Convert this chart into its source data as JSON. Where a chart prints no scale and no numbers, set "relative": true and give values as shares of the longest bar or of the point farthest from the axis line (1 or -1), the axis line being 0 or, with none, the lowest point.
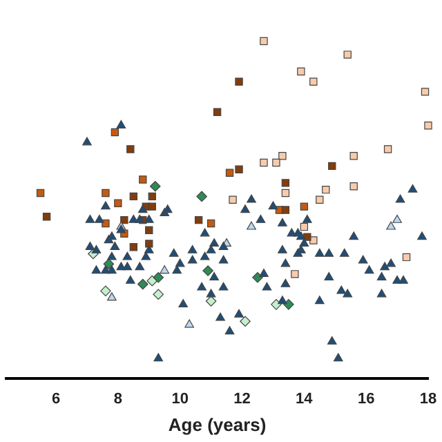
{
  "chart_data": {
    "type": "scatter",
    "xlabel": "Age (years)",
    "xlim": [
      4.4,
      18
    ],
    "xticks": [
      6,
      8,
      10,
      12,
      14,
      16,
      18
    ],
    "relative": true,
    "grid": false,
    "legend": false,
    "tick_labels": "x",
    "series": [
      {
        "marker": "triangle",
        "color": "#1f4e79",
        "x": [
          7.0,
          8.1,
          7.1,
          7.4,
          7.6,
          8.5,
          8.8,
          7.1,
          7.3,
          7.9,
          7.7,
          7.8,
          8.1,
          8.7,
          9.0,
          9.5,
          9.6,
          7.3,
          7.6,
          8.1,
          8.3,
          8.9,
          8.3,
          8.7,
          9.0,
          7.8,
          7.8,
          8.4,
          9.9,
          10.0,
          9.8,
          10.4,
          10.4,
          10.8,
          11.0,
          10.8,
          11.1,
          11.4,
          11.1,
          10.1,
          10.7,
          11.0,
          11.4,
          11.4,
          9.3,
          11.3,
          11.6,
          12.1,
          12.6,
          13.0,
          13.3,
          13.3,
          13.8,
          14.1,
          13.6,
          13.8,
          13.9,
          13.9,
          14.0,
          14.5,
          14.8,
          15.3,
          15.6,
          16.1,
          15.9,
          16.5,
          16.5,
          15.4,
          15.2,
          14.8,
          14.5,
          13.4,
          12.8,
          13.4,
          12.7,
          13.3,
          11.9,
          14.9,
          15.1,
          12.3,
          17.1,
          17.5,
          17.8,
          16.6,
          16.8,
          17.0,
          17.2
        ],
        "values": [
          0.7,
          0.75,
          0.47,
          0.47,
          0.51,
          0.47,
          0.5,
          0.39,
          0.38,
          0.39,
          0.41,
          0.42,
          0.44,
          0.47,
          0.47,
          0.49,
          0.5,
          0.32,
          0.32,
          0.33,
          0.36,
          0.36,
          0.33,
          0.33,
          0.38,
          0.36,
          0.32,
          0.29,
          0.32,
          0.34,
          0.37,
          0.38,
          0.35,
          0.36,
          0.38,
          0.43,
          0.4,
          0.39,
          0.3,
          0.22,
          0.27,
          0.25,
          0.35,
          0.27,
          0.06,
          0.18,
          0.14,
          0.5,
          0.47,
          0.51,
          0.46,
          0.38,
          0.43,
          0.47,
          0.43,
          0.37,
          0.42,
          0.38,
          0.4,
          0.37,
          0.37,
          0.37,
          0.42,
          0.32,
          0.35,
          0.25,
          0.3,
          0.25,
          0.26,
          0.3,
          0.23,
          0.28,
          0.27,
          0.34,
          0.31,
          0.23,
          0.19,
          0.11,
          0.06,
          0.53,
          0.53,
          0.56,
          0.42,
          0.33,
          0.34,
          0.29,
          0.29
        ]
      },
      {
        "marker": "triangle",
        "color": "#bdd7ee",
        "x": [
          8.1,
          9.5,
          10.3,
          7.8,
          12.3,
          16.8,
          17.0,
          11.5
        ],
        "values": [
          0.45,
          0.32,
          0.16,
          0.24,
          0.45,
          0.45,
          0.47,
          0.4
        ]
      },
      {
        "marker": "diamond",
        "color": "#2e8b57",
        "x": [
          9.2,
          7.7,
          8.8,
          9.3,
          10.9,
          12.5,
          13.5,
          10.7
        ],
        "values": [
          0.57,
          0.34,
          0.28,
          0.3,
          0.32,
          0.3,
          0.22,
          0.54
        ]
      },
      {
        "marker": "diamond",
        "color": "#c6efce",
        "x": [
          7.2,
          7.6,
          9.1,
          9.3,
          11.0,
          12.1,
          13.1
        ],
        "values": [
          0.37,
          0.26,
          0.29,
          0.25,
          0.23,
          0.17,
          0.22
        ]
      },
      {
        "marker": "square",
        "color": "#843c0c",
        "x": [
          8.4,
          8.5,
          9.1,
          8.9,
          9.1,
          8.8,
          9.0,
          9.0,
          8.2,
          5.7,
          11.2,
          11.9,
          11.9,
          10.6,
          13.4,
          13.4,
          14.1,
          14.9,
          8.5
        ],
        "values": [
          0.68,
          0.54,
          0.54,
          0.51,
          0.51,
          0.47,
          0.44,
          0.4,
          0.47,
          0.48,
          0.79,
          0.88,
          0.62,
          0.47,
          0.5,
          0.58,
          0.42,
          0.63,
          0.39
        ]
      },
      {
        "marker": "square",
        "color": "#c55a11",
        "x": [
          7.9,
          5.5,
          7.6,
          8.0,
          8.2,
          7.6,
          8.8,
          11.0,
          11.6,
          13.2,
          14.0
        ],
        "values": [
          0.73,
          0.55,
          0.55,
          0.52,
          0.43,
          0.46,
          0.59,
          0.46,
          0.61,
          0.5,
          0.51
        ]
      },
      {
        "marker": "square",
        "color": "#f8cbad",
        "x": [
          12.7,
          15.4,
          13.9,
          14.3,
          17.9,
          18.0,
          16.7,
          15.6,
          13.3,
          13.1,
          12.7,
          13.4,
          14.7,
          15.6,
          14.5,
          14.0,
          14.3,
          13.7,
          17.3,
          11.7
        ],
        "values": [
          1.0,
          0.96,
          0.91,
          0.88,
          0.85,
          0.75,
          0.68,
          0.66,
          0.66,
          0.64,
          0.64,
          0.55,
          0.56,
          0.57,
          0.53,
          0.45,
          0.41,
          0.31,
          0.36,
          0.53
        ]
      }
    ]
  }
}
